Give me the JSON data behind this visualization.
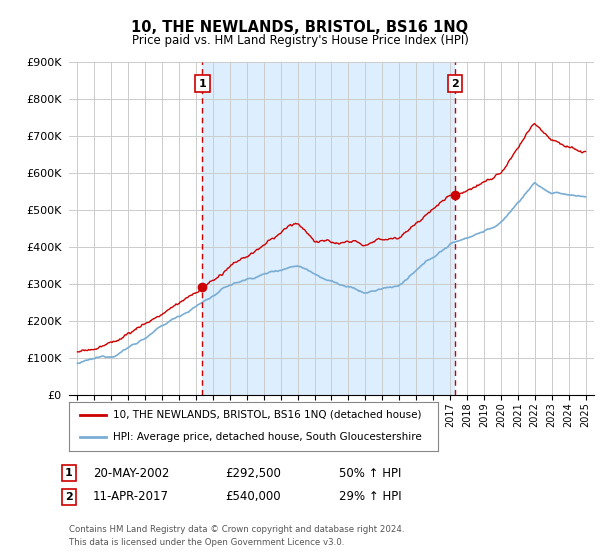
{
  "title": "10, THE NEWLANDS, BRISTOL, BS16 1NQ",
  "subtitle": "Price paid vs. HM Land Registry's House Price Index (HPI)",
  "legend_line1": "10, THE NEWLANDS, BRISTOL, BS16 1NQ (detached house)",
  "legend_line2": "HPI: Average price, detached house, South Gloucestershire",
  "sale1_label": "1",
  "sale1_date": "20-MAY-2002",
  "sale1_price": "£292,500",
  "sale1_hpi": "50% ↑ HPI",
  "sale1_year": 2002.38,
  "sale1_value": 292500,
  "sale2_label": "2",
  "sale2_date": "11-APR-2017",
  "sale2_price": "£540,000",
  "sale2_hpi": "29% ↑ HPI",
  "sale2_year": 2017.28,
  "sale2_value": 540000,
  "red_color": "#cc0000",
  "blue_color": "#7aadd4",
  "shade_color": "#ddeeff",
  "vline_color": "#cc0000",
  "grid_color": "#cccccc",
  "background_color": "#ffffff",
  "ylim": [
    0,
    900000
  ],
  "xlim": [
    1994.5,
    2025.5
  ],
  "footnote": "Contains HM Land Registry data © Crown copyright and database right 2024.\nThis data is licensed under the Open Government Licence v3.0."
}
